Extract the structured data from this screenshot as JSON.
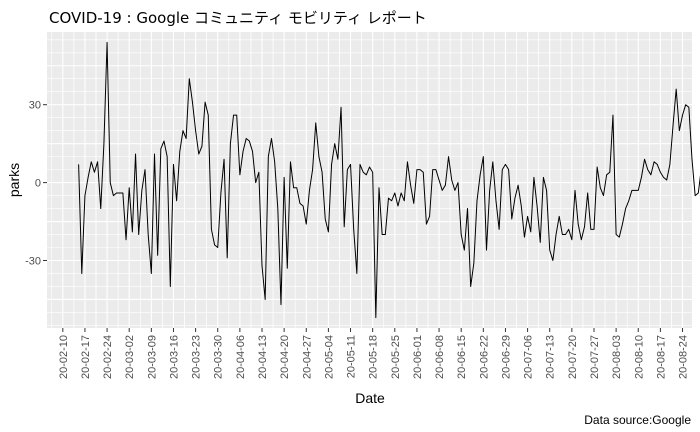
{
  "chart_data": {
    "type": "line",
    "title": "COVID-19 : Google コミュニティ モビリティ レポート",
    "xlabel": "Date",
    "ylabel": "parks",
    "caption": "Data source:Google",
    "x_start": "2020-02-15",
    "x_step_days": 1,
    "xlim": [
      "2020-02-05",
      "2020-08-27"
    ],
    "ylim": [
      -56,
      58
    ],
    "x_ticks": [
      "20-02-10",
      "20-02-17",
      "20-02-24",
      "20-03-02",
      "20-03-09",
      "20-03-16",
      "20-03-23",
      "20-03-30",
      "20-04-06",
      "20-04-13",
      "20-04-20",
      "20-04-27",
      "20-05-04",
      "20-05-11",
      "20-05-18",
      "20-05-25",
      "20-06-01",
      "20-06-08",
      "20-06-15",
      "20-06-22",
      "20-06-29",
      "20-07-06",
      "20-07-13",
      "20-07-20",
      "20-07-27",
      "20-08-03",
      "20-08-10",
      "20-08-17",
      "20-08-24"
    ],
    "y_ticks": [
      30,
      0,
      -30
    ],
    "y_tick_labels": [
      "30",
      "0",
      "-30"
    ],
    "grid": true,
    "colors": {
      "panel": "#ebebeb",
      "grid": "#ffffff",
      "line": "#000000",
      "tick_text": "#4d4d4d"
    },
    "series": [
      {
        "values": [
          7,
          -35,
          -5,
          2,
          8,
          4,
          8,
          -10,
          15,
          54,
          0,
          -5,
          -4,
          -4,
          -4,
          -22,
          -2,
          -19,
          11,
          -20,
          -3,
          5,
          -20,
          -35,
          11,
          -28,
          13,
          16,
          10,
          -40,
          7,
          -7,
          12,
          20,
          17,
          40,
          31,
          20,
          11,
          14,
          31,
          26,
          -18,
          -24,
          -25,
          -4,
          9,
          -29,
          15,
          26,
          26,
          3,
          12,
          17,
          16,
          12,
          0,
          4,
          -32,
          -45,
          10,
          17,
          8,
          -10,
          -47,
          2,
          -33,
          8,
          -2,
          -2,
          -8,
          -9,
          -16,
          -3,
          5,
          23,
          10,
          4,
          -14,
          -19,
          7,
          15,
          9,
          29,
          -17,
          5,
          7,
          -18,
          -35,
          7,
          4,
          3,
          6,
          4,
          -52,
          -2,
          -20,
          -20,
          -6,
          -7,
          -4,
          -9,
          -4,
          -7,
          8,
          -1,
          -8,
          5,
          5,
          4,
          -16,
          -13,
          5,
          5,
          1,
          -3,
          -1,
          10,
          1,
          -3,
          0,
          -20,
          -26,
          -10,
          -40,
          -31,
          -7,
          3,
          10,
          -26,
          -3,
          8,
          -7,
          -18,
          5,
          7,
          5,
          -14,
          -6,
          -1,
          -9,
          -21,
          -13,
          -19,
          2,
          -9,
          -23,
          2,
          -3,
          -26,
          -30,
          -20,
          -13,
          -20,
          -20,
          -18,
          -22,
          -3,
          -16,
          -22,
          -17,
          -4,
          -18,
          -18,
          6,
          -2,
          -5,
          3,
          4,
          26,
          -20,
          -21,
          -16,
          -10,
          -7,
          -3,
          -3,
          -3,
          2,
          9,
          5,
          3,
          8,
          7,
          4,
          2,
          1,
          7,
          22,
          36,
          20,
          26,
          30,
          29,
          9,
          -5,
          -4,
          6,
          7,
          1
        ],
        "color": "#000000"
      }
    ]
  }
}
